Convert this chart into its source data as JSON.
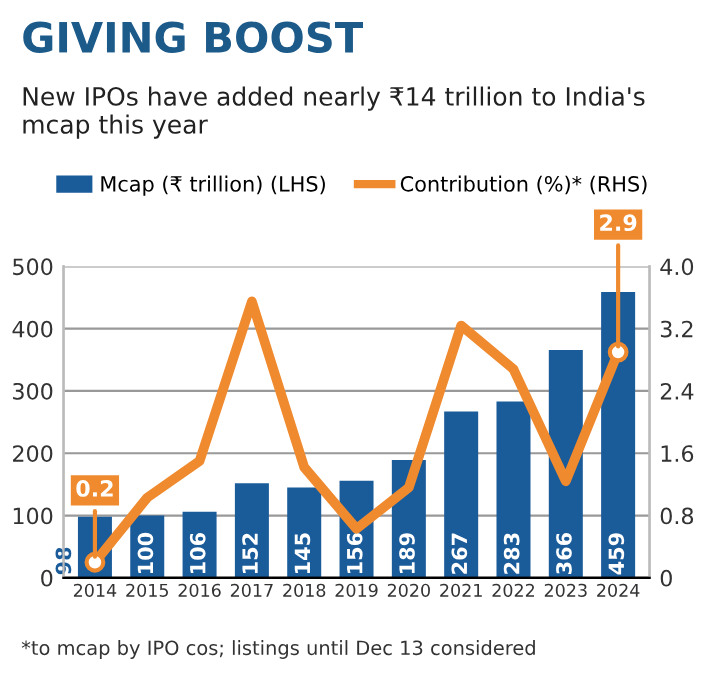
{
  "chart_data": {
    "type": "bar",
    "title": "GIVING BOOST",
    "subtitle": "New IPOs have added nearly ₹14 trillion to India's mcap this year",
    "categories": [
      "2014",
      "2015",
      "2016",
      "2017",
      "2018",
      "2019",
      "2020",
      "2021",
      "2022",
      "2023",
      "2024"
    ],
    "series": [
      {
        "name": "Mcap (₹ trillion) (LHS)",
        "color": "#1a5b9a",
        "values": [
          98,
          100,
          106,
          152,
          145,
          156,
          189,
          267,
          283,
          366,
          459
        ],
        "data_labels": true
      },
      {
        "name": "Contribution (%)* (RHS)",
        "type": "line",
        "axis": "y2",
        "color": "#f08a2e",
        "values": [
          0.2,
          1.03,
          1.5,
          3.55,
          1.42,
          0.63,
          1.16,
          3.24,
          2.68,
          1.24,
          2.9
        ],
        "value_labels": [
          "0.2",
          null,
          null,
          null,
          null,
          null,
          null,
          null,
          null,
          null,
          "2.9"
        ]
      }
    ],
    "ylim": [
      0,
      500
    ],
    "yticks": [
      0,
      100,
      200,
      300,
      400,
      500
    ],
    "y2lim": [
      0,
      4
    ],
    "y2ticks": [
      0,
      0.8,
      1.6,
      2.4,
      3.2,
      {
        "value": 4,
        "label": "4.0"
      }
    ],
    "grid": "y",
    "legend": "top",
    "annotations": [
      "*to mcap by IPO cos; listings until Dec 13 considered"
    ]
  }
}
